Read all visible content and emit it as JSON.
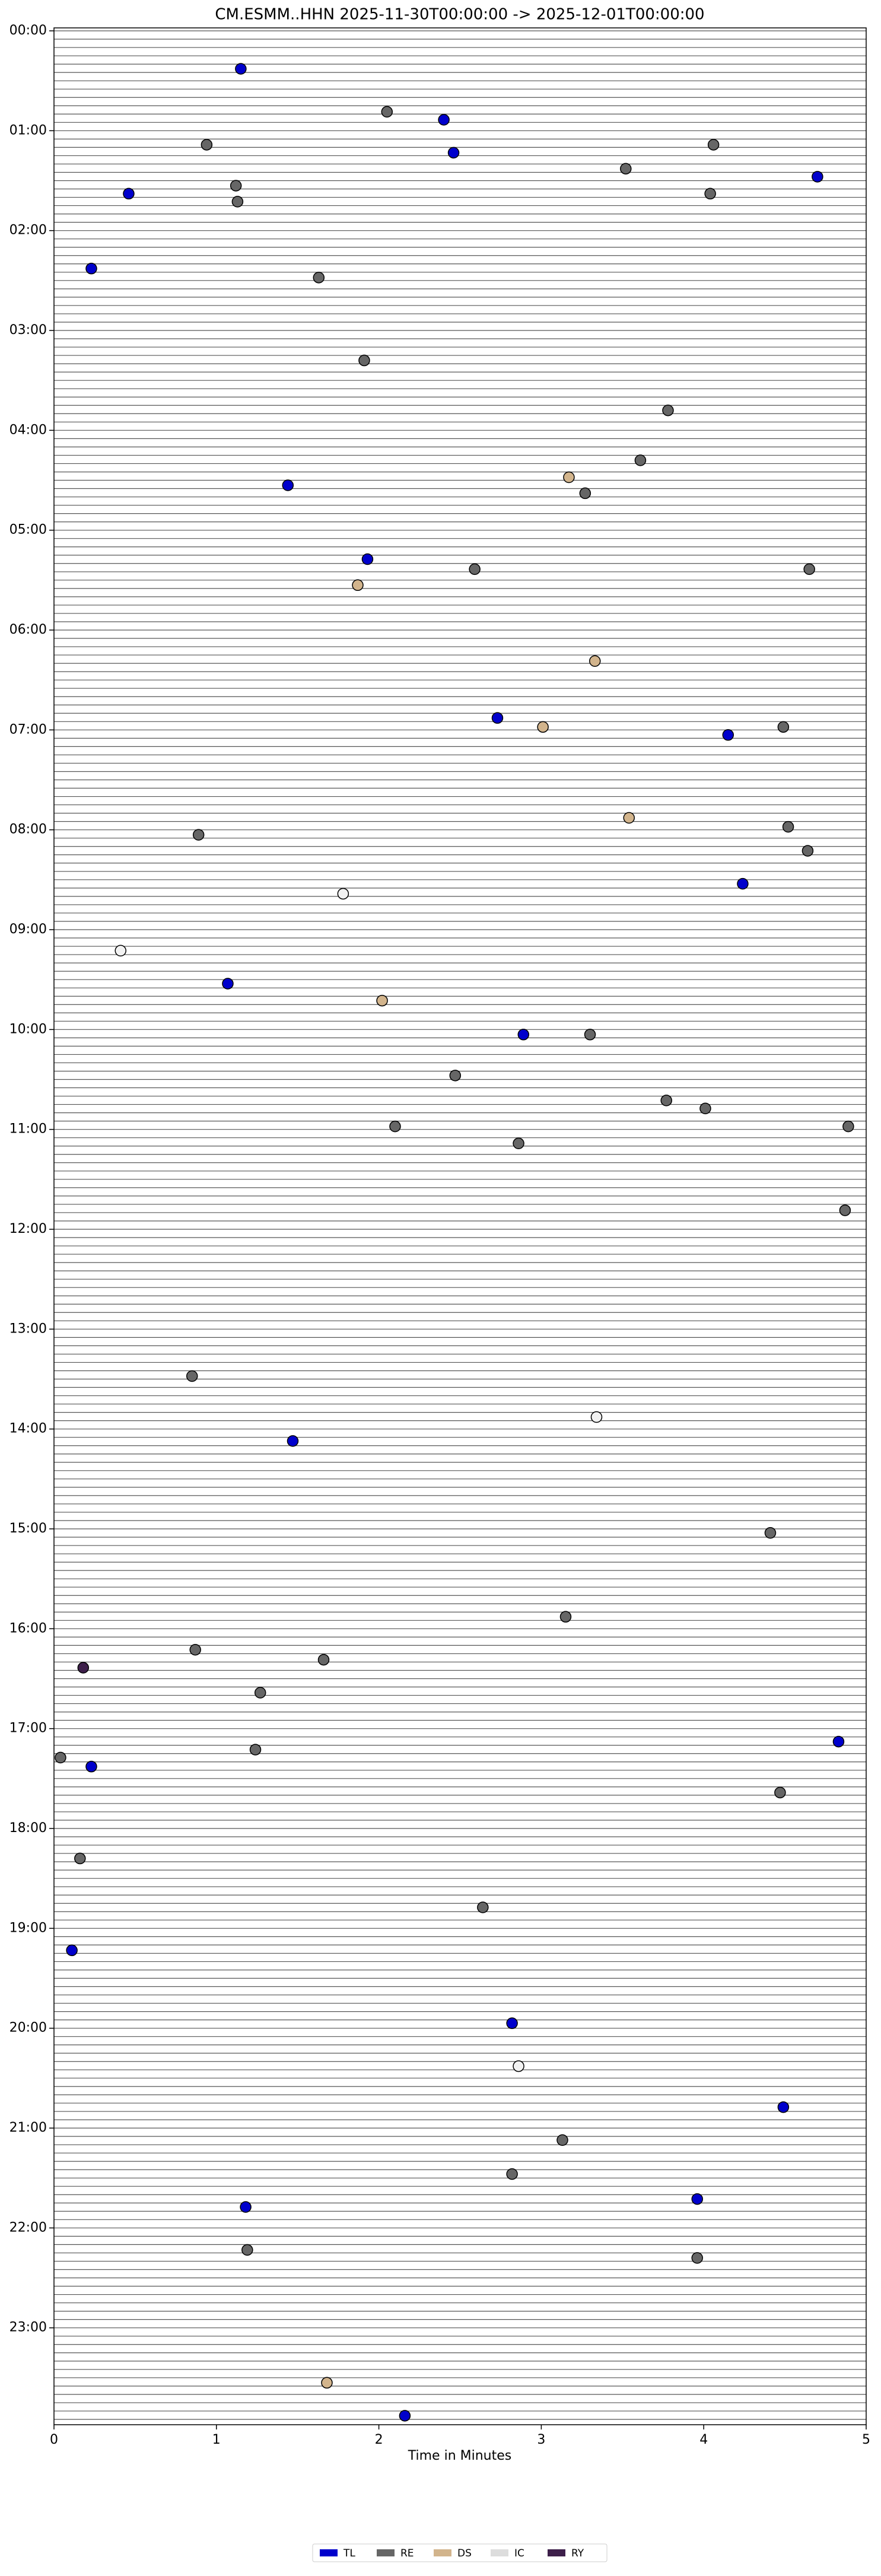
{
  "chart_data": {
    "type": "scatter",
    "title": "CM.ESMM..HHN  2025-11-30T00:00:00 -> 2025-12-01T00:00:00",
    "x_label": "Time in Minutes",
    "xlim": [
      0,
      5
    ],
    "xticks": [
      0,
      1,
      2,
      3,
      4,
      5
    ],
    "ylim": [
      24,
      0
    ],
    "yticks": [
      {
        "value": 0,
        "label": "00:00"
      },
      {
        "value": 1,
        "label": "01:00"
      },
      {
        "value": 2,
        "label": "02:00"
      },
      {
        "value": 3,
        "label": "03:00"
      },
      {
        "value": 4,
        "label": "04:00"
      },
      {
        "value": 5,
        "label": "05:00"
      },
      {
        "value": 6,
        "label": "06:00"
      },
      {
        "value": 7,
        "label": "07:00"
      },
      {
        "value": 8,
        "label": "08:00"
      },
      {
        "value": 9,
        "label": "09:00"
      },
      {
        "value": 10,
        "label": "10:00"
      },
      {
        "value": 11,
        "label": "11:00"
      },
      {
        "value": 12,
        "label": "12:00"
      },
      {
        "value": 13,
        "label": "13:00"
      },
      {
        "value": 14,
        "label": "14:00"
      },
      {
        "value": 15,
        "label": "15:00"
      },
      {
        "value": 16,
        "label": "16:00"
      },
      {
        "value": 17,
        "label": "17:00"
      },
      {
        "value": 18,
        "label": "18:00"
      },
      {
        "value": 19,
        "label": "19:00"
      },
      {
        "value": 20,
        "label": "20:00"
      },
      {
        "value": 21,
        "label": "21:00"
      },
      {
        "value": 22,
        "label": "22:00"
      },
      {
        "value": 23,
        "label": "23:00"
      }
    ],
    "series": [
      {
        "name": "TL",
        "color": "#0000cc",
        "x": [
          1.15,
          2.4,
          2.46,
          4.7,
          0.46,
          0.23,
          1.44,
          1.93,
          2.73,
          4.15,
          4.24,
          1.07,
          2.89,
          1.47,
          0.23,
          4.83,
          0.11,
          2.82,
          4.49,
          3.96,
          1.18,
          2.16
        ],
        "values": [
          0.41,
          0.92,
          1.25,
          1.49,
          1.66,
          2.41,
          4.58,
          5.32,
          6.91,
          7.08,
          8.57,
          9.57,
          10.08,
          14.15,
          17.41,
          17.16,
          19.25,
          19.98,
          20.82,
          21.74,
          21.82,
          23.91
        ]
      },
      {
        "name": "RE",
        "color": "#666666",
        "x": [
          2.05,
          0.94,
          4.06,
          3.52,
          1.12,
          4.04,
          1.13,
          1.63,
          1.91,
          3.78,
          3.61,
          3.27,
          2.59,
          4.65,
          4.49,
          4.52,
          4.64,
          0.89,
          3.3,
          2.47,
          3.77,
          4.01,
          2.1,
          4.89,
          2.86,
          4.87,
          0.85,
          4.41,
          3.15,
          0.87,
          1.66,
          1.27,
          0.04,
          1.24,
          4.47,
          0.16,
          2.64,
          3.13,
          2.82,
          1.19,
          3.96
        ],
        "values": [
          0.84,
          1.17,
          1.17,
          1.41,
          1.58,
          1.66,
          1.74,
          2.5,
          3.33,
          3.83,
          4.33,
          4.66,
          5.42,
          5.42,
          7.0,
          8.0,
          8.24,
          8.08,
          10.08,
          10.49,
          10.74,
          10.82,
          11.0,
          11.0,
          11.17,
          11.84,
          13.5,
          15.07,
          15.91,
          16.24,
          16.34,
          16.67,
          17.32,
          17.24,
          17.67,
          18.33,
          18.82,
          21.15,
          21.49,
          22.25,
          22.33
        ]
      },
      {
        "name": "DS",
        "color": "#d2b48c",
        "x": [
          3.17,
          1.87,
          3.33,
          3.01,
          3.54,
          2.02,
          1.68
        ],
        "values": [
          4.5,
          5.58,
          6.34,
          7.0,
          7.91,
          9.74,
          23.58
        ]
      },
      {
        "name": "IC",
        "color": "#f2f2f2",
        "x": [
          1.78,
          0.41,
          3.34,
          2.86
        ],
        "values": [
          8.67,
          9.24,
          13.91,
          20.41
        ]
      },
      {
        "name": "RY",
        "color": "#3d1f4a",
        "x": [
          0.18
        ],
        "values": [
          16.42
        ]
      }
    ]
  }
}
